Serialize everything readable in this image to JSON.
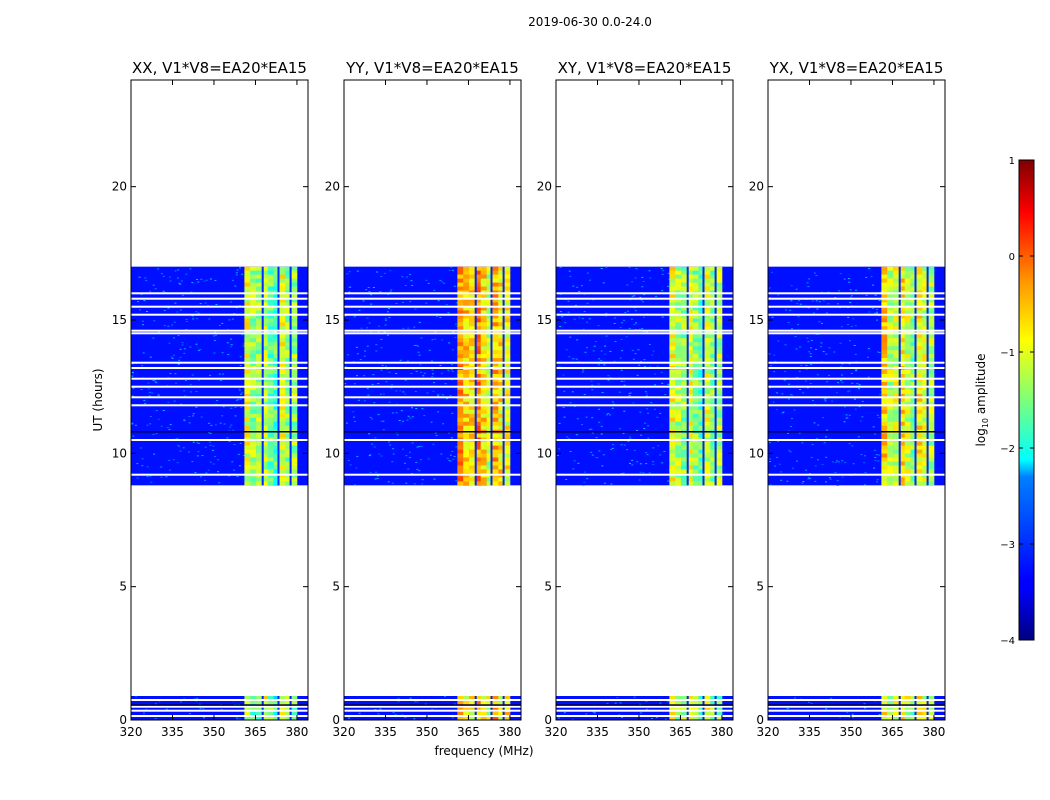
{
  "suptitle": "2019-06-30 0.0-24.0",
  "xlabel": "frequency (MHz)",
  "ylabel": "UT (hours)",
  "xticks": [
    "320",
    "335",
    "350",
    "365",
    "380"
  ],
  "xtick_values": [
    320,
    335,
    350,
    365,
    380
  ],
  "yticks": [
    "0",
    "5",
    "10",
    "15",
    "20"
  ],
  "ytick_values": [
    0,
    5,
    10,
    15,
    20
  ],
  "colorbar": {
    "label_prefix": "log",
    "label_sub": "10",
    "label_suffix": " amplitude",
    "range": [
      -4,
      1
    ],
    "ticks": [
      "1",
      "0",
      "−1",
      "−2",
      "−3",
      "−4"
    ],
    "tick_values": [
      1,
      0,
      -1,
      -2,
      -3,
      -4
    ],
    "colormap": "jet"
  },
  "chart_data": {
    "type": "heatmap",
    "xlim": [
      320,
      384
    ],
    "ylim": [
      0,
      24
    ],
    "background_value": -3.3,
    "band_start_mhz": 361,
    "band_end_mhz": 381,
    "data_blocks_hours": [
      [
        0.0,
        0.9
      ],
      [
        8.8,
        17.0
      ]
    ],
    "panels": [
      {
        "title": "XX, V1*V8=EA20*EA15",
        "band_start": 361,
        "band_end": 380,
        "band_level": -1.5
      },
      {
        "title": "YY, V1*V8=EA20*EA15",
        "band_start": 361,
        "band_end": 380,
        "band_level": -0.8
      },
      {
        "title": "XY, V1*V8=EA20*EA15",
        "band_start": 361,
        "band_end": 380,
        "band_level": -1.4
      },
      {
        "title": "YX, V1*V8=EA20*EA15",
        "band_start": 361,
        "band_end": 380,
        "band_level": -1.2
      }
    ],
    "flagged_rows_hours": [
      9.2,
      10.5,
      11.8,
      12.1,
      12.5,
      12.8,
      13.2,
      13.4,
      14.5,
      14.6,
      15.2,
      15.5,
      15.8,
      16.0,
      0.15,
      0.35,
      0.5,
      0.75
    ],
    "dark_rows_hours": [
      10.8,
      0.55
    ]
  }
}
